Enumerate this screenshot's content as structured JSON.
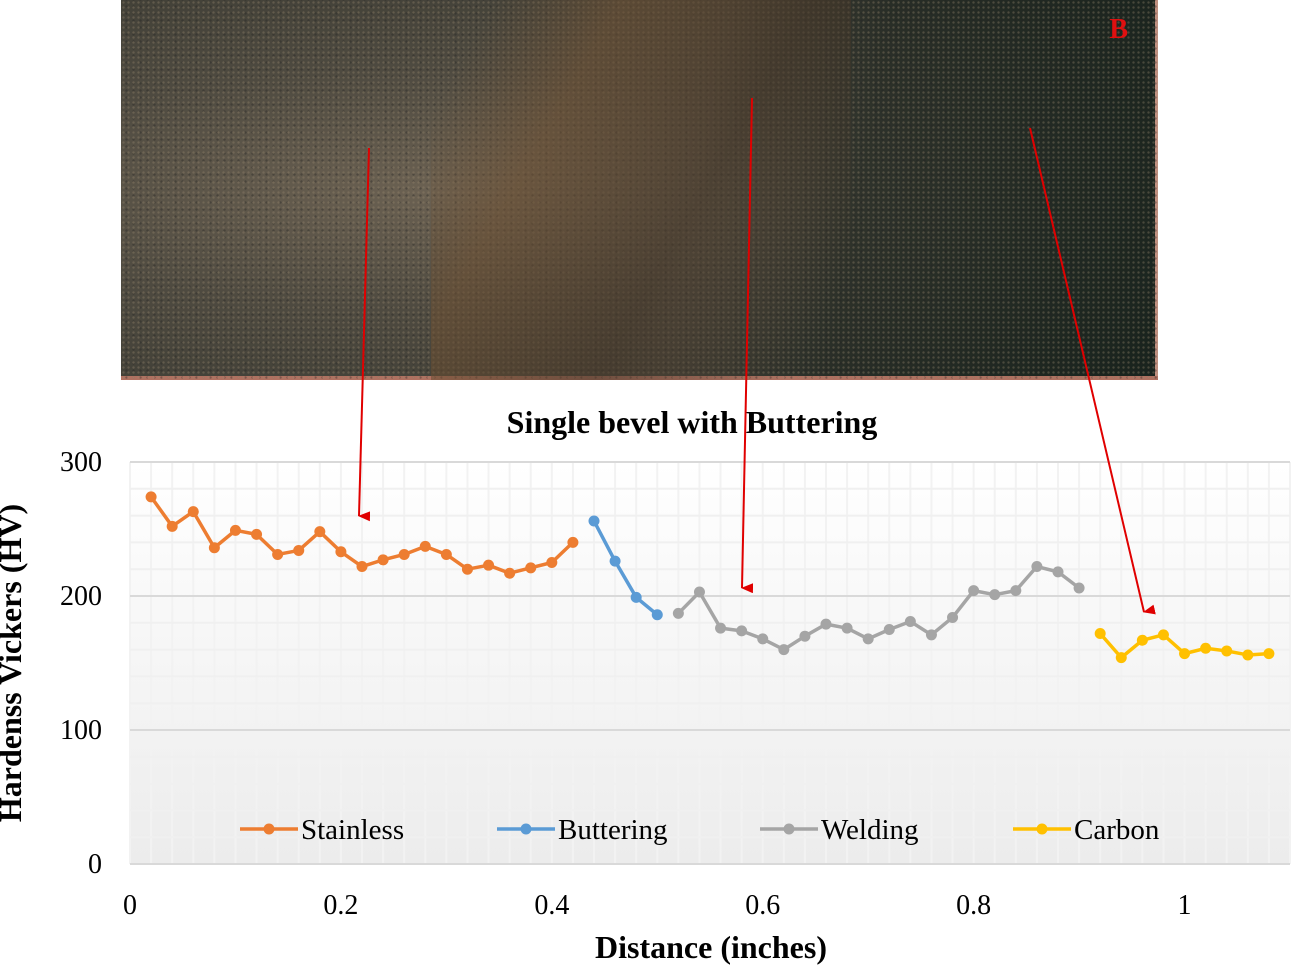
{
  "photo": {
    "panel_label": "B"
  },
  "chart_data": {
    "type": "line",
    "title": "Single bevel with Buttering",
    "xlabel": "Distance (inches)",
    "ylabel": "Hardenss Vickers (HV)",
    "xlim": [
      0,
      1.1
    ],
    "ylim": [
      0,
      300
    ],
    "xticks": [
      "0",
      "0.2",
      "0.4",
      "0.6",
      "0.8",
      "1"
    ],
    "yticks": [
      "0",
      "100",
      "200",
      "300"
    ],
    "grid": true,
    "legend_position": "bottom-inside",
    "series": [
      {
        "name": "Stainless",
        "color": "#ED7D31",
        "x": [
          0.02,
          0.04,
          0.06,
          0.08,
          0.1,
          0.12,
          0.14,
          0.16,
          0.18,
          0.2,
          0.22,
          0.24,
          0.26,
          0.28,
          0.3,
          0.32,
          0.34,
          0.36,
          0.38,
          0.4,
          0.42
        ],
        "y": [
          274,
          252,
          263,
          236,
          249,
          246,
          231,
          234,
          248,
          233,
          222,
          227,
          231,
          237,
          231,
          220,
          223,
          217,
          221,
          225,
          240
        ]
      },
      {
        "name": "Buttering",
        "color": "#5B9BD5",
        "x": [
          0.44,
          0.46,
          0.48,
          0.5
        ],
        "y": [
          256,
          226,
          199,
          186
        ]
      },
      {
        "name": "Welding",
        "color": "#A5A5A5",
        "x": [
          0.52,
          0.54,
          0.56,
          0.58,
          0.6,
          0.62,
          0.64,
          0.66,
          0.68,
          0.7,
          0.72,
          0.74,
          0.76,
          0.78,
          0.8,
          0.82,
          0.84,
          0.86,
          0.88,
          0.9
        ],
        "y": [
          187,
          203,
          176,
          174,
          168,
          160,
          170,
          179,
          176,
          168,
          175,
          181,
          171,
          184,
          204,
          201,
          204,
          222,
          218,
          206
        ]
      },
      {
        "name": "Carbon",
        "color": "#FFC000",
        "x": [
          0.92,
          0.94,
          0.96,
          0.98,
          1.0,
          1.02,
          1.04,
          1.06,
          1.08
        ],
        "y": [
          172,
          154,
          167,
          171,
          157,
          161,
          159,
          156,
          157
        ]
      }
    ]
  },
  "arrow_color": "#E00000"
}
